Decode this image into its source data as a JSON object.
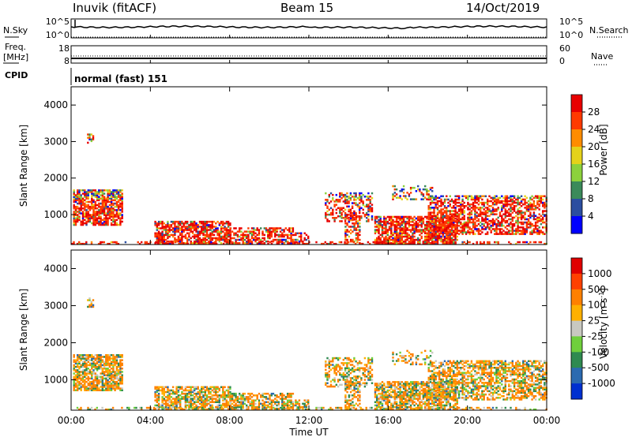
{
  "header": {
    "title": "Inuvik (fitACF)",
    "beam": "Beam 15",
    "date": "14/Oct/2019"
  },
  "status_panels": {
    "nsky_label": "N.Sky",
    "nsearch_label": "N.Search",
    "count_ticks_left": [
      "10^5",
      "10^0"
    ],
    "count_ticks_right": [
      "10^5",
      "10^0"
    ],
    "freq_label_line1": "Freq.",
    "freq_label_line2": "[MHz]",
    "freq_ticks": [
      "18",
      "8"
    ],
    "nave_label": "Nave",
    "nave_ticks": [
      "60",
      "0"
    ],
    "cpid_label": "CPID",
    "cpid_text": "normal (fast) 151"
  },
  "chart_data": [
    {
      "type": "heatmap",
      "name": "power",
      "ylabel": "Slant Range [km]",
      "ylim": [
        180,
        4500
      ],
      "yticks": [
        "4000",
        "3000",
        "2000",
        "1000"
      ],
      "colorbar_label": "Power [dB]",
      "colorbar_ticks": [
        "28",
        "24",
        "20",
        "16",
        "12",
        "8",
        "4"
      ],
      "colors": [
        "#0000ff",
        "#2b4ea0",
        "#3b8a5a",
        "#8cd13c",
        "#e5d21a",
        "#ff8c00",
        "#ff3a00",
        "#e80000"
      ]
    },
    {
      "type": "heatmap",
      "name": "velocity",
      "ylabel": "Slant Range [km]",
      "ylim": [
        180,
        4500
      ],
      "yticks": [
        "4000",
        "3000",
        "2000",
        "1000"
      ],
      "colorbar_label": "Velocity [m s",
      "colorbar_label_sup": "-1",
      "colorbar_label_end": "]",
      "colorbar_ticks": [
        "1000",
        "500",
        "100",
        "25",
        "-25",
        "-100",
        "-500",
        "-1000"
      ],
      "colors": [
        "#0030d0",
        "#2b6ab0",
        "#2f8a50",
        "#6fcf3c",
        "#c8c8c0",
        "#ffb000",
        "#ff8000",
        "#ff4000",
        "#e00000"
      ]
    }
  ],
  "x_axis": {
    "label": "Time UT",
    "ticks": [
      "00:00",
      "04:00",
      "08:00",
      "12:00",
      "16:00",
      "20:00",
      "00:00"
    ]
  }
}
